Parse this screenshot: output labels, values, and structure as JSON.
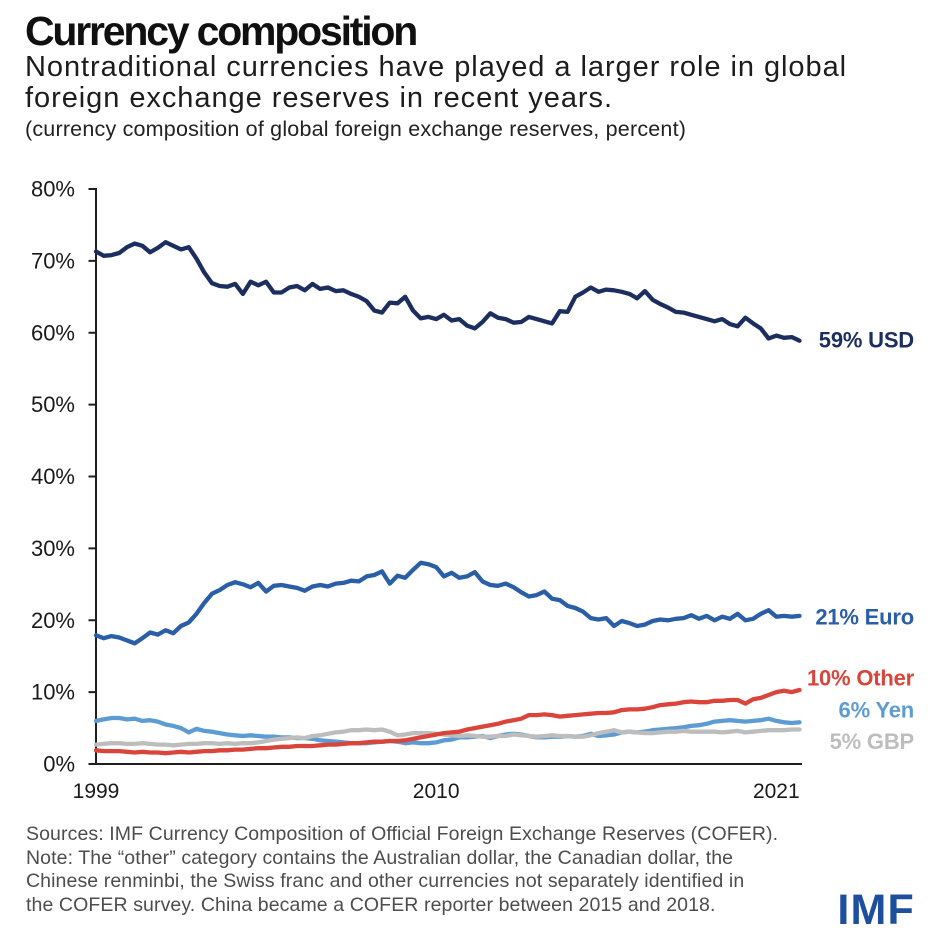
{
  "title": "Currency composition",
  "subtitle": "Nontraditional currencies have played a larger role in global foreign exchange reserves in recent years.",
  "caption": "(currency composition of global foreign exchange reserves, percent)",
  "footer": {
    "lines": [
      "Sources: IMF Currency Composition of Official Foreign Exchange Reserves (COFER).",
      "Note: The “other” category contains the Australian dollar, the Canadian dollar, the",
      "Chinese renminbi, the Swiss franc and other currencies not separately identified in",
      "the COFER survey. China became a COFER reporter between 2015 and 2018."
    ]
  },
  "logo_text": "IMF",
  "colors": {
    "usd": "#1c2e5f",
    "euro": "#2a5ea6",
    "other": "#da453b",
    "yen": "#5d9cd3",
    "gbp": "#bdbdbd",
    "axis": "#1f1f1f",
    "tick_text": "#1a1a1a",
    "logo_blue": "#1e4f9e"
  },
  "chart_data": {
    "type": "line",
    "title": "Currency composition",
    "ylabel": "percent of global foreign exchange reserves",
    "frequency": "quarterly",
    "x_start": "1999Q1",
    "x_end": "2021Q4",
    "x_tick_labels": [
      "1999",
      "2010",
      "2021"
    ],
    "y_tick_labels": [
      "0%",
      "10%",
      "20%",
      "30%",
      "40%",
      "50%",
      "60%",
      "70%",
      "80%"
    ],
    "ylim": [
      0,
      80
    ],
    "grid": false,
    "legend_position": "right-end-labels",
    "series": [
      {
        "name": "USD",
        "label": "59% USD",
        "color": "#1c2e5f",
        "values": [
          71.3,
          70.7,
          70.8,
          71.1,
          71.9,
          72.4,
          72.1,
          71.2,
          71.8,
          72.6,
          72.1,
          71.6,
          71.9,
          70.3,
          68.4,
          66.9,
          66.5,
          66.4,
          66.8,
          65.4,
          67.1,
          66.6,
          67.1,
          65.6,
          65.6,
          66.3,
          66.5,
          65.9,
          66.8,
          66.1,
          66.3,
          65.8,
          65.9,
          65.4,
          65.0,
          64.4,
          63.1,
          62.8,
          64.2,
          64.1,
          65.0,
          63.1,
          62.0,
          62.2,
          61.9,
          62.5,
          61.7,
          61.9,
          61.0,
          60.6,
          61.5,
          62.7,
          62.1,
          61.9,
          61.4,
          61.5,
          62.2,
          61.9,
          61.6,
          61.3,
          63.0,
          62.9,
          65.0,
          65.6,
          66.3,
          65.7,
          66.0,
          65.9,
          65.7,
          65.4,
          64.8,
          65.8,
          64.6,
          64.0,
          63.5,
          62.9,
          62.8,
          62.5,
          62.2,
          61.9,
          61.6,
          61.9,
          61.2,
          60.9,
          62.1,
          61.3,
          60.6,
          59.2,
          59.6,
          59.3,
          59.4,
          58.9
        ]
      },
      {
        "name": "Euro",
        "label": "21% Euro",
        "color": "#2a5ea6",
        "values": [
          17.9,
          17.5,
          17.8,
          17.6,
          17.2,
          16.8,
          17.5,
          18.3,
          18.0,
          18.6,
          18.2,
          19.2,
          19.7,
          20.9,
          22.4,
          23.7,
          24.2,
          24.9,
          25.3,
          25.0,
          24.6,
          25.2,
          24.0,
          24.8,
          24.9,
          24.7,
          24.5,
          24.1,
          24.7,
          24.9,
          24.7,
          25.1,
          25.2,
          25.5,
          25.4,
          26.1,
          26.3,
          26.8,
          25.1,
          26.2,
          25.9,
          27.0,
          28.0,
          27.8,
          27.4,
          26.1,
          26.6,
          25.9,
          26.1,
          26.7,
          25.4,
          24.9,
          24.8,
          25.1,
          24.6,
          23.9,
          23.3,
          23.5,
          24.0,
          23.0,
          22.8,
          22.0,
          21.7,
          21.2,
          20.3,
          20.1,
          20.3,
          19.2,
          19.9,
          19.6,
          19.2,
          19.4,
          19.9,
          20.1,
          20.0,
          20.2,
          20.3,
          20.7,
          20.2,
          20.6,
          20.0,
          20.5,
          20.2,
          20.9,
          20.0,
          20.2,
          20.9,
          21.4,
          20.5,
          20.6,
          20.5,
          20.6
        ]
      },
      {
        "name": "Other",
        "label": "10% Other",
        "color": "#da453b",
        "values": [
          1.9,
          1.8,
          1.8,
          1.8,
          1.7,
          1.6,
          1.7,
          1.6,
          1.6,
          1.5,
          1.6,
          1.7,
          1.6,
          1.7,
          1.8,
          1.8,
          1.9,
          1.9,
          2.0,
          2.0,
          2.1,
          2.2,
          2.2,
          2.3,
          2.4,
          2.4,
          2.5,
          2.5,
          2.5,
          2.6,
          2.7,
          2.7,
          2.8,
          2.9,
          2.9,
          3.0,
          3.1,
          3.1,
          3.2,
          3.2,
          3.3,
          3.5,
          3.7,
          3.9,
          4.1,
          4.3,
          4.4,
          4.5,
          4.8,
          5.0,
          5.2,
          5.4,
          5.6,
          5.9,
          6.1,
          6.3,
          6.8,
          6.8,
          6.9,
          6.8,
          6.6,
          6.7,
          6.8,
          6.9,
          7.0,
          7.1,
          7.1,
          7.2,
          7.5,
          7.6,
          7.6,
          7.7,
          7.9,
          8.2,
          8.3,
          8.4,
          8.6,
          8.7,
          8.6,
          8.6,
          8.8,
          8.8,
          8.9,
          8.9,
          8.4,
          9.0,
          9.2,
          9.6,
          10.0,
          10.2,
          10.0,
          10.3
        ]
      },
      {
        "name": "Yen",
        "label": "6% Yen",
        "color": "#5d9cd3",
        "values": [
          6.0,
          6.2,
          6.4,
          6.4,
          6.2,
          6.3,
          6.0,
          6.1,
          5.9,
          5.5,
          5.3,
          5.0,
          4.4,
          4.9,
          4.6,
          4.5,
          4.3,
          4.1,
          4.0,
          3.9,
          4.0,
          3.9,
          3.8,
          3.8,
          3.7,
          3.7,
          3.6,
          3.6,
          3.5,
          3.3,
          3.2,
          3.1,
          3.0,
          2.9,
          2.9,
          2.9,
          3.0,
          3.1,
          3.2,
          3.1,
          2.9,
          3.0,
          2.9,
          2.9,
          3.0,
          3.3,
          3.4,
          3.7,
          3.7,
          3.8,
          3.9,
          3.6,
          3.9,
          4.1,
          4.2,
          4.1,
          3.9,
          3.7,
          3.7,
          3.8,
          3.8,
          3.9,
          3.8,
          3.9,
          4.2,
          3.9,
          4.0,
          4.1,
          4.4,
          4.5,
          4.4,
          4.5,
          4.7,
          4.8,
          4.9,
          5.0,
          5.1,
          5.3,
          5.4,
          5.6,
          5.9,
          6.0,
          6.1,
          6.0,
          5.9,
          6.0,
          6.1,
          6.3,
          6.0,
          5.8,
          5.7,
          5.8
        ]
      },
      {
        "name": "GBP",
        "label": "5% GBP",
        "color": "#bdbdbd",
        "values": [
          2.7,
          2.8,
          2.9,
          2.9,
          2.8,
          2.8,
          2.9,
          2.8,
          2.7,
          2.7,
          2.6,
          2.7,
          2.8,
          2.8,
          2.9,
          2.9,
          2.8,
          2.9,
          2.8,
          2.9,
          2.9,
          3.0,
          3.2,
          3.4,
          3.5,
          3.6,
          3.7,
          3.6,
          3.9,
          4.0,
          4.2,
          4.4,
          4.5,
          4.7,
          4.7,
          4.8,
          4.7,
          4.8,
          4.5,
          4.0,
          4.1,
          4.3,
          4.3,
          4.3,
          4.2,
          4.1,
          4.0,
          3.9,
          4.0,
          3.9,
          3.8,
          3.8,
          3.9,
          3.9,
          4.1,
          4.0,
          3.9,
          3.8,
          3.9,
          4.0,
          3.9,
          3.9,
          3.8,
          3.8,
          4.0,
          4.3,
          4.5,
          4.7,
          4.4,
          4.5,
          4.4,
          4.3,
          4.3,
          4.4,
          4.5,
          4.5,
          4.6,
          4.5,
          4.5,
          4.5,
          4.5,
          4.4,
          4.5,
          4.6,
          4.4,
          4.5,
          4.6,
          4.7,
          4.7,
          4.7,
          4.8,
          4.8
        ]
      }
    ]
  }
}
